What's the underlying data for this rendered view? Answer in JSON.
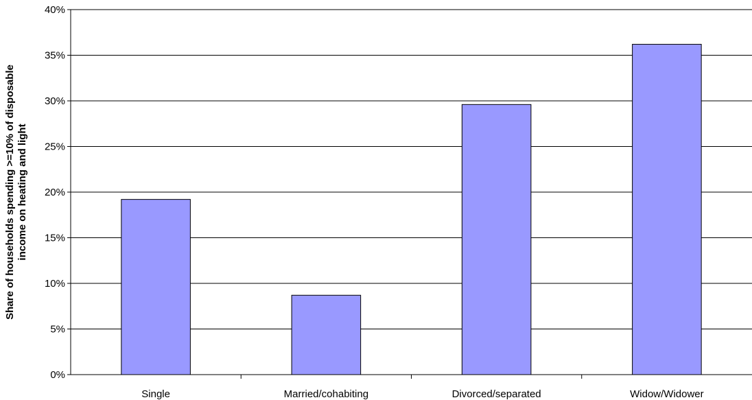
{
  "chart_data": {
    "type": "bar",
    "title": "",
    "xlabel": "",
    "ylabel": [
      "Share of households spending >=10% of disposable",
      "income on heating and light"
    ],
    "categories": [
      "Single",
      "Married/cohabiting",
      "Divorced/separated",
      "Widow/Widower"
    ],
    "values": [
      19.2,
      8.7,
      29.6,
      36.2
    ],
    "ylim": [
      0,
      40
    ],
    "yticks": [
      0,
      5,
      10,
      15,
      20,
      25,
      30,
      35,
      40
    ],
    "ytick_labels": [
      "0%",
      "5%",
      "10%",
      "15%",
      "20%",
      "25%",
      "30%",
      "35%",
      "40%"
    ],
    "grid": true,
    "legend": "none",
    "colors": {
      "bar_fill": "#9999ff",
      "bar_stroke": "#000000",
      "grid": "#000000"
    }
  }
}
